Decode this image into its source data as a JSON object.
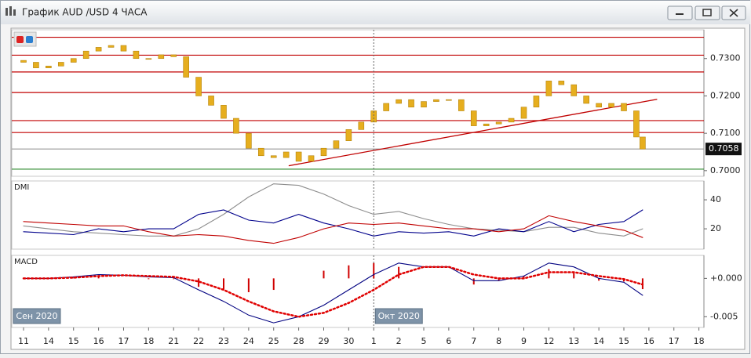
{
  "window": {
    "title": "График AUD /USD  4 ЧАСА"
  },
  "chart_data": [
    {
      "type": "candlestick",
      "color": "#e6ae1e",
      "xlim": [
        -0.47,
        27.2
      ],
      "ylim": [
        0.6985,
        0.7377
      ],
      "yticks": [
        {
          "value": 0.7,
          "label": "0.7000"
        },
        {
          "value": 0.71,
          "label": "0.7100"
        },
        {
          "value": 0.72,
          "label": "0.7200"
        },
        {
          "value": 0.73,
          "label": "0.7300"
        }
      ],
      "last_price": 0.7058,
      "levels": [
        {
          "value": 0.7357,
          "color": "#c00000"
        },
        {
          "value": 0.7309,
          "color": "#c00000"
        },
        {
          "value": 0.7264,
          "color": "#c00000"
        },
        {
          "value": 0.7209,
          "color": "#c00000"
        },
        {
          "value": 0.7134,
          "color": "#c00000"
        },
        {
          "value": 0.7102,
          "color": "#c00000"
        },
        {
          "value": 0.7058,
          "color": "#999999"
        },
        {
          "value": 0.7004,
          "color": "#2e8b2e"
        }
      ],
      "trendlines": [
        {
          "x": [
            10.6,
            25.33
          ],
          "y": [
            0.7013,
            0.7191
          ],
          "color": "#c00000"
        }
      ],
      "series": [
        {
          "x": [
            0,
            0.5,
            1,
            1.5,
            2,
            2.5,
            3,
            3.5,
            4,
            4.5,
            5,
            5.5,
            6,
            6.5,
            7,
            7.5,
            8,
            8.5,
            9,
            9.5,
            10,
            10.5,
            11,
            11.5,
            12,
            12.5,
            13,
            13.5,
            14,
            14.5,
            15,
            15.5,
            16,
            16.5,
            17,
            17.5,
            18,
            18.5,
            19,
            19.5,
            20,
            20.5,
            21,
            21.5,
            22,
            22.5,
            23,
            23.5,
            24,
            24.5,
            24.75
          ],
          "open": [
            0.7295,
            0.729,
            0.7275,
            0.728,
            0.729,
            0.73,
            0.732,
            0.733,
            0.7335,
            0.732,
            0.73,
            0.73,
            0.731,
            0.7305,
            0.725,
            0.72,
            0.7175,
            0.714,
            0.71,
            0.706,
            0.704,
            0.7035,
            0.705,
            0.7025,
            0.704,
            0.706,
            0.708,
            0.711,
            0.713,
            0.716,
            0.718,
            0.719,
            0.717,
            0.7185,
            0.719,
            0.719,
            0.716,
            0.712,
            0.7125,
            0.713,
            0.714,
            0.717,
            0.72,
            0.724,
            0.723,
            0.72,
            0.718,
            0.717,
            0.718,
            0.716,
            0.709
          ],
          "close": [
            0.729,
            0.7275,
            0.728,
            0.729,
            0.73,
            0.732,
            0.733,
            0.7335,
            0.732,
            0.73,
            0.73,
            0.731,
            0.7305,
            0.725,
            0.72,
            0.7175,
            0.714,
            0.71,
            0.706,
            0.704,
            0.7035,
            0.705,
            0.7025,
            0.704,
            0.706,
            0.708,
            0.711,
            0.713,
            0.716,
            0.718,
            0.719,
            0.717,
            0.7185,
            0.719,
            0.719,
            0.716,
            0.712,
            0.7125,
            0.713,
            0.714,
            0.717,
            0.72,
            0.724,
            0.723,
            0.72,
            0.718,
            0.717,
            0.718,
            0.716,
            0.709,
            0.7058
          ]
        }
      ]
    },
    {
      "type": "line",
      "title": "DMI",
      "xlim": [
        -0.47,
        27.2
      ],
      "ylim": [
        6,
        53
      ],
      "yticks": [
        20,
        40
      ],
      "x": [
        0,
        1,
        2,
        3,
        4,
        5,
        6,
        7,
        8,
        9,
        10,
        11,
        12,
        13,
        14,
        15,
        16,
        17,
        18,
        19,
        20,
        21,
        22,
        23,
        24,
        24.75
      ],
      "series": [
        {
          "color": "#8c8c8c",
          "values": [
            22,
            20,
            18,
            17,
            16,
            15,
            15,
            20,
            30,
            42,
            51,
            50,
            44,
            36,
            30,
            32,
            27,
            23,
            20,
            19,
            18,
            21,
            21,
            17,
            15,
            20
          ]
        },
        {
          "color": "#00008b",
          "values": [
            18,
            17,
            16,
            20,
            18,
            20,
            20,
            30,
            33,
            26,
            24,
            30,
            24,
            20,
            15,
            18,
            17,
            18,
            15,
            20,
            18,
            25,
            18,
            23,
            25,
            33
          ]
        },
        {
          "color": "#c00000",
          "values": [
            25,
            24,
            23,
            22,
            22,
            18,
            15,
            16,
            15,
            12,
            10,
            14,
            20,
            24,
            23,
            24,
            22,
            20,
            20,
            18,
            20,
            29,
            25,
            22,
            19,
            14
          ]
        }
      ]
    },
    {
      "type": "line",
      "title": "MACD",
      "xlim": [
        -0.47,
        27.2
      ],
      "ylim": [
        -0.0064,
        0.003
      ],
      "yticks": [
        {
          "value": -0.005,
          "label": "-0.005"
        },
        {
          "value": 0,
          "label": "+0.000"
        }
      ],
      "xticks": [
        {
          "value": 0,
          "label": "11"
        },
        {
          "value": 1,
          "label": "14"
        },
        {
          "value": 2,
          "label": "15"
        },
        {
          "value": 3,
          "label": "16"
        },
        {
          "value": 4,
          "label": "17"
        },
        {
          "value": 5,
          "label": "18"
        },
        {
          "value": 6,
          "label": "21"
        },
        {
          "value": 7,
          "label": "22"
        },
        {
          "value": 8,
          "label": "23"
        },
        {
          "value": 9,
          "label": "24"
        },
        {
          "value": 10,
          "label": "25"
        },
        {
          "value": 11,
          "label": "28"
        },
        {
          "value": 12,
          "label": "29"
        },
        {
          "value": 13,
          "label": "30"
        },
        {
          "value": 14,
          "label": "1"
        },
        {
          "value": 15,
          "label": "2"
        },
        {
          "value": 16,
          "label": "5"
        },
        {
          "value": 17,
          "label": "6"
        },
        {
          "value": 18,
          "label": "7"
        },
        {
          "value": 19,
          "label": "8"
        },
        {
          "value": 20,
          "label": "9"
        },
        {
          "value": 21,
          "label": "12"
        },
        {
          "value": 22,
          "label": "13"
        },
        {
          "value": 23,
          "label": "14"
        },
        {
          "value": 24,
          "label": "15"
        },
        {
          "value": 25,
          "label": "16"
        },
        {
          "value": 26,
          "label": "17"
        },
        {
          "value": 27,
          "label": "18"
        }
      ],
      "separators": [
        14
      ],
      "annotations": [
        "Сен 2020",
        "Окт 2020"
      ],
      "x": [
        0,
        1,
        2,
        3,
        4,
        5,
        6,
        7,
        8,
        9,
        10,
        11,
        12,
        13,
        14,
        15,
        16,
        17,
        18,
        19,
        20,
        21,
        22,
        23,
        24,
        24.75
      ],
      "series": [
        {
          "kind": "bar",
          "color": "#d00000",
          "values": [
            0,
            0,
            0.0001,
            0.0002,
            0,
            -0.0001,
            -0.0001,
            -0.0011,
            -0.0015,
            -0.0018,
            -0.0015,
            0,
            0.001,
            0.0017,
            0.002,
            0.0015,
            0,
            0,
            -0.0008,
            -0.0003,
            0.0003,
            0.0012,
            0.0007,
            -0.0003,
            -0.0004,
            -0.0014
          ]
        },
        {
          "kind": "line",
          "color": "#000080",
          "values": [
            0,
            0,
            0.0002,
            0.0005,
            0.0004,
            0.0002,
            0.0001,
            -0.0015,
            -0.003,
            -0.0048,
            -0.0058,
            -0.005,
            -0.0035,
            -0.0015,
            0.0005,
            0.002,
            0.0015,
            0.0015,
            -0.0003,
            -0.0003,
            0.0003,
            0.002,
            0.0015,
            0,
            -0.0005,
            -0.0022
          ]
        },
        {
          "kind": "dots",
          "color": "#e00000",
          "values": [
            0,
            0,
            0.0001,
            0.0003,
            0.0004,
            0.0003,
            0.0002,
            -0.0004,
            -0.0015,
            -0.003,
            -0.0043,
            -0.005,
            -0.0045,
            -0.0032,
            -0.0015,
            0.0005,
            0.0015,
            0.0015,
            0.0005,
            0,
            0,
            0.0008,
            0.0008,
            0.0003,
            -0.0001,
            -0.0008
          ]
        }
      ]
    }
  ]
}
